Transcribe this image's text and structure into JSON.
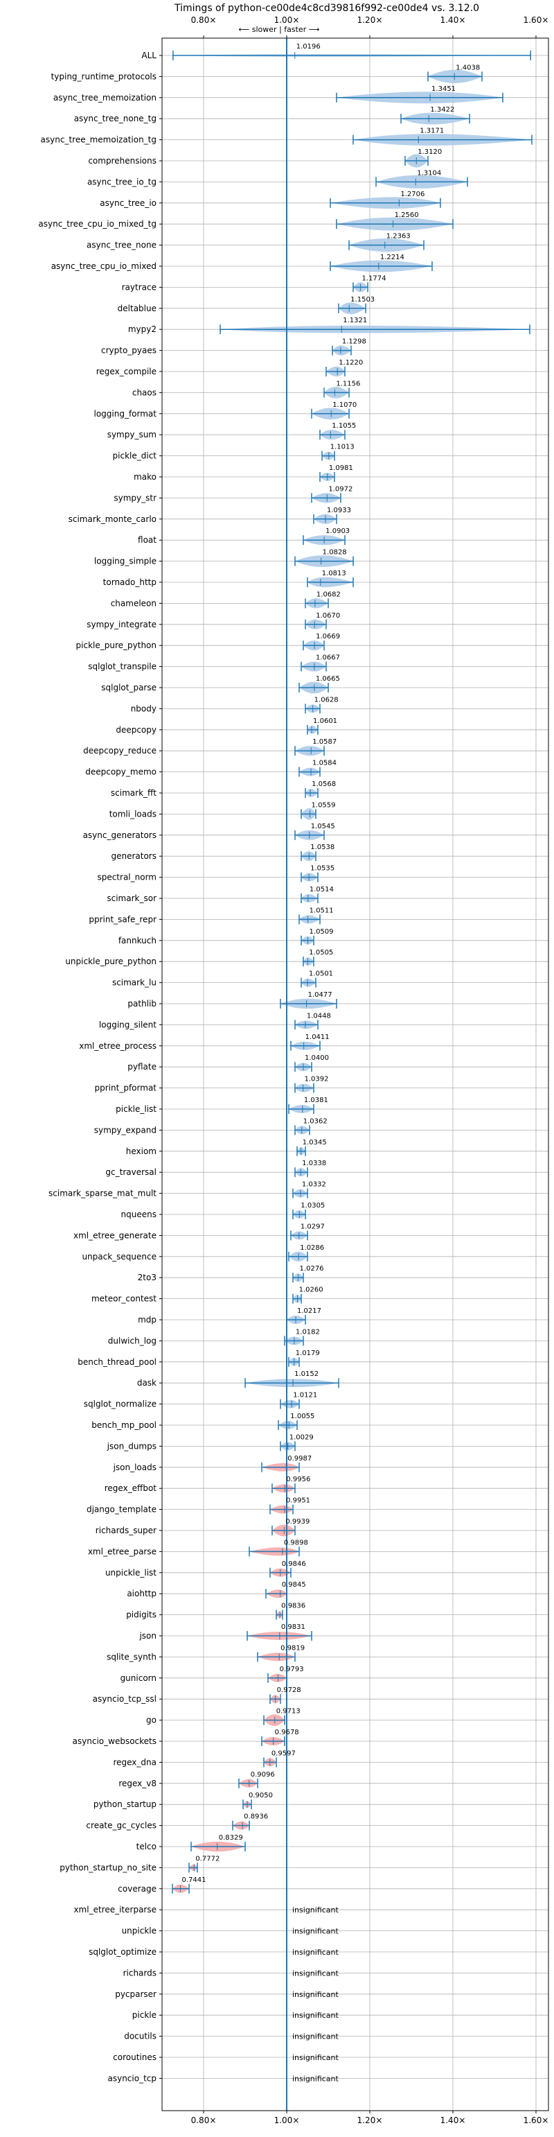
{
  "chart_data": {
    "type": "violin",
    "title": "Timings of python-ce00de4c8cd39816f992-ce00de4 vs. 3.12.0",
    "annotation_top": "⟵ slower | faster ⟶",
    "xlim": [
      0.7,
      1.63
    ],
    "xticks": [
      0.8,
      1.0,
      1.2,
      1.4,
      1.6
    ],
    "xtick_labels": [
      "0.80×",
      "1.00×",
      "1.20×",
      "1.40×",
      "1.60×"
    ],
    "reference_line": 1.0,
    "grid": true,
    "colors": {
      "faster": "#1f77b4",
      "slower": "#d62728",
      "violin_faster": "#a9c8e6",
      "violin_slower": "#f4a6a6",
      "text": "#000000",
      "grid": "#b0b0b0"
    },
    "insignificant_label": "insignificant",
    "rows": [
      {
        "name": "ALL",
        "value": 1.0196,
        "min": 0.7264,
        "max": 1.5871,
        "w": 0.15
      },
      {
        "name": "typing_runtime_protocols",
        "value": 1.4038,
        "min": 1.34,
        "max": 1.47,
        "w": 0.8
      },
      {
        "name": "async_tree_memoization",
        "value": 1.3451,
        "min": 1.12,
        "max": 1.52,
        "w": 0.7
      },
      {
        "name": "async_tree_none_tg",
        "value": 1.3422,
        "min": 1.275,
        "max": 1.44,
        "w": 0.7
      },
      {
        "name": "async_tree_memoization_tg",
        "value": 1.3171,
        "min": 1.16,
        "max": 1.59,
        "w": 0.7
      },
      {
        "name": "comprehensions",
        "value": 1.312,
        "min": 1.285,
        "max": 1.34,
        "w": 0.8
      },
      {
        "name": "async_tree_io_tg",
        "value": 1.3104,
        "min": 1.215,
        "max": 1.435,
        "w": 0.8
      },
      {
        "name": "async_tree_io",
        "value": 1.2706,
        "min": 1.105,
        "max": 1.37,
        "w": 0.7
      },
      {
        "name": "async_tree_cpu_io_mixed_tg",
        "value": 1.256,
        "min": 1.12,
        "max": 1.4,
        "w": 0.8
      },
      {
        "name": "async_tree_none",
        "value": 1.2363,
        "min": 1.15,
        "max": 1.33,
        "w": 0.8
      },
      {
        "name": "async_tree_cpu_io_mixed",
        "value": 1.2214,
        "min": 1.105,
        "max": 1.35,
        "w": 0.7
      },
      {
        "name": "raytrace",
        "value": 1.1774,
        "min": 1.16,
        "max": 1.195,
        "w": 0.6
      },
      {
        "name": "deltablue",
        "value": 1.1503,
        "min": 1.125,
        "max": 1.19,
        "w": 0.7
      },
      {
        "name": "mypy2",
        "value": 1.1321,
        "min": 0.84,
        "max": 1.585,
        "w": 0.45
      },
      {
        "name": "crypto_pyaes",
        "value": 1.1298,
        "min": 1.11,
        "max": 1.155,
        "w": 0.6
      },
      {
        "name": "regex_compile",
        "value": 1.122,
        "min": 1.095,
        "max": 1.14,
        "w": 0.6
      },
      {
        "name": "chaos",
        "value": 1.1156,
        "min": 1.09,
        "max": 1.15,
        "w": 0.7
      },
      {
        "name": "logging_format",
        "value": 1.107,
        "min": 1.06,
        "max": 1.15,
        "w": 0.7
      },
      {
        "name": "sympy_sum",
        "value": 1.1055,
        "min": 1.08,
        "max": 1.14,
        "w": 0.6
      },
      {
        "name": "pickle_dict",
        "value": 1.1013,
        "min": 1.085,
        "max": 1.115,
        "w": 0.5
      },
      {
        "name": "mako",
        "value": 1.0981,
        "min": 1.08,
        "max": 1.115,
        "w": 0.5
      },
      {
        "name": "sympy_str",
        "value": 1.0972,
        "min": 1.06,
        "max": 1.13,
        "w": 0.6
      },
      {
        "name": "scimark_monte_carlo",
        "value": 1.0933,
        "min": 1.065,
        "max": 1.12,
        "w": 0.6
      },
      {
        "name": "float",
        "value": 1.0903,
        "min": 1.04,
        "max": 1.14,
        "w": 0.6
      },
      {
        "name": "logging_simple",
        "value": 1.0828,
        "min": 1.02,
        "max": 1.16,
        "w": 0.7
      },
      {
        "name": "tornado_http",
        "value": 1.0813,
        "min": 1.05,
        "max": 1.16,
        "w": 0.6
      },
      {
        "name": "chameleon",
        "value": 1.0682,
        "min": 1.045,
        "max": 1.1,
        "w": 0.6
      },
      {
        "name": "sympy_integrate",
        "value": 1.067,
        "min": 1.045,
        "max": 1.095,
        "w": 0.6
      },
      {
        "name": "pickle_pure_python",
        "value": 1.0669,
        "min": 1.04,
        "max": 1.09,
        "w": 0.6
      },
      {
        "name": "sqlglot_transpile",
        "value": 1.0667,
        "min": 1.035,
        "max": 1.095,
        "w": 0.6
      },
      {
        "name": "sqlglot_parse",
        "value": 1.0665,
        "min": 1.03,
        "max": 1.1,
        "w": 0.7
      },
      {
        "name": "nbody",
        "value": 1.0628,
        "min": 1.045,
        "max": 1.08,
        "w": 0.5
      },
      {
        "name": "deepcopy",
        "value": 1.0601,
        "min": 1.05,
        "max": 1.075,
        "w": 0.5
      },
      {
        "name": "deepcopy_reduce",
        "value": 1.0587,
        "min": 1.02,
        "max": 1.09,
        "w": 0.6
      },
      {
        "name": "deepcopy_memo",
        "value": 1.0584,
        "min": 1.03,
        "max": 1.08,
        "w": 0.5
      },
      {
        "name": "scimark_fft",
        "value": 1.0568,
        "min": 1.045,
        "max": 1.075,
        "w": 0.5
      },
      {
        "name": "tomli_loads",
        "value": 1.0559,
        "min": 1.035,
        "max": 1.07,
        "w": 0.7
      },
      {
        "name": "async_generators",
        "value": 1.0545,
        "min": 1.02,
        "max": 1.09,
        "w": 0.6
      },
      {
        "name": "generators",
        "value": 1.0538,
        "min": 1.035,
        "max": 1.07,
        "w": 0.6
      },
      {
        "name": "spectral_norm",
        "value": 1.0535,
        "min": 1.035,
        "max": 1.075,
        "w": 0.5
      },
      {
        "name": "scimark_sor",
        "value": 1.0514,
        "min": 1.035,
        "max": 1.075,
        "w": 0.5
      },
      {
        "name": "pprint_safe_repr",
        "value": 1.0511,
        "min": 1.03,
        "max": 1.08,
        "w": 0.5
      },
      {
        "name": "fannkuch",
        "value": 1.0509,
        "min": 1.035,
        "max": 1.065,
        "w": 0.5
      },
      {
        "name": "unpickle_pure_python",
        "value": 1.0505,
        "min": 1.04,
        "max": 1.065,
        "w": 0.5
      },
      {
        "name": "scimark_lu",
        "value": 1.0501,
        "min": 1.035,
        "max": 1.07,
        "w": 0.5
      },
      {
        "name": "pathlib",
        "value": 1.0477,
        "min": 0.985,
        "max": 1.12,
        "w": 0.6
      },
      {
        "name": "logging_silent",
        "value": 1.0448,
        "min": 1.02,
        "max": 1.075,
        "w": 0.5
      },
      {
        "name": "xml_etree_process",
        "value": 1.0411,
        "min": 1.01,
        "max": 1.08,
        "w": 0.5
      },
      {
        "name": "pyflate",
        "value": 1.04,
        "min": 1.02,
        "max": 1.06,
        "w": 0.5
      },
      {
        "name": "pprint_pformat",
        "value": 1.0392,
        "min": 1.02,
        "max": 1.065,
        "w": 0.5
      },
      {
        "name": "pickle_list",
        "value": 1.0381,
        "min": 1.005,
        "max": 1.065,
        "w": 0.5
      },
      {
        "name": "sympy_expand",
        "value": 1.0362,
        "min": 1.02,
        "max": 1.055,
        "w": 0.5
      },
      {
        "name": "hexiom",
        "value": 1.0345,
        "min": 1.025,
        "max": 1.045,
        "w": 0.5
      },
      {
        "name": "gc_traversal",
        "value": 1.0338,
        "min": 1.02,
        "max": 1.05,
        "w": 0.5
      },
      {
        "name": "scimark_sparse_mat_mult",
        "value": 1.0332,
        "min": 1.015,
        "max": 1.05,
        "w": 0.5
      },
      {
        "name": "nqueens",
        "value": 1.0305,
        "min": 1.015,
        "max": 1.045,
        "w": 0.5
      },
      {
        "name": "xml_etree_generate",
        "value": 1.0297,
        "min": 1.01,
        "max": 1.05,
        "w": 0.5
      },
      {
        "name": "unpack_sequence",
        "value": 1.0286,
        "min": 1.005,
        "max": 1.05,
        "w": 0.6
      },
      {
        "name": "2to3",
        "value": 1.0276,
        "min": 1.015,
        "max": 1.04,
        "w": 0.5
      },
      {
        "name": "meteor_contest",
        "value": 1.026,
        "min": 1.015,
        "max": 1.035,
        "w": 0.5
      },
      {
        "name": "mdp",
        "value": 1.0217,
        "min": 1.0,
        "max": 1.045,
        "w": 0.5
      },
      {
        "name": "dulwich_log",
        "value": 1.0182,
        "min": 0.995,
        "max": 1.04,
        "w": 0.5
      },
      {
        "name": "bench_thread_pool",
        "value": 1.0179,
        "min": 1.005,
        "max": 1.03,
        "w": 0.5
      },
      {
        "name": "dask",
        "value": 1.0152,
        "min": 0.9,
        "max": 1.125,
        "w": 0.5
      },
      {
        "name": "sqlglot_normalize",
        "value": 1.0121,
        "min": 0.985,
        "max": 1.03,
        "w": 0.5
      },
      {
        "name": "bench_mp_pool",
        "value": 1.0055,
        "min": 0.98,
        "max": 1.025,
        "w": 0.5
      },
      {
        "name": "json_dumps",
        "value": 1.0029,
        "min": 0.985,
        "max": 1.02,
        "w": 0.5
      },
      {
        "name": "json_loads",
        "value": 0.9987,
        "min": 0.94,
        "max": 1.03,
        "w": 0.5
      },
      {
        "name": "regex_effbot",
        "value": 0.9956,
        "min": 0.965,
        "max": 1.02,
        "w": 0.5
      },
      {
        "name": "django_template",
        "value": 0.9951,
        "min": 0.96,
        "max": 1.015,
        "w": 0.5
      },
      {
        "name": "richards_super",
        "value": 0.9939,
        "min": 0.965,
        "max": 1.02,
        "w": 0.7
      },
      {
        "name": "xml_etree_parse",
        "value": 0.9898,
        "min": 0.91,
        "max": 1.03,
        "w": 0.5
      },
      {
        "name": "unpickle_list",
        "value": 0.9846,
        "min": 0.96,
        "max": 1.01,
        "w": 0.5
      },
      {
        "name": "aiohttp",
        "value": 0.9845,
        "min": 0.95,
        "max": 1.0,
        "w": 0.5
      },
      {
        "name": "pidigits",
        "value": 0.9836,
        "min": 0.975,
        "max": 0.99,
        "w": 0.4
      },
      {
        "name": "json",
        "value": 0.9831,
        "min": 0.905,
        "max": 1.06,
        "w": 0.5
      },
      {
        "name": "sqlite_synth",
        "value": 0.9819,
        "min": 0.93,
        "max": 1.02,
        "w": 0.5
      },
      {
        "name": "gunicorn",
        "value": 0.9793,
        "min": 0.955,
        "max": 1.0,
        "w": 0.5
      },
      {
        "name": "asyncio_tcp_ssl",
        "value": 0.9728,
        "min": 0.96,
        "max": 0.985,
        "w": 0.5
      },
      {
        "name": "go",
        "value": 0.9713,
        "min": 0.945,
        "max": 0.995,
        "w": 0.7
      },
      {
        "name": "asyncio_websockets",
        "value": 0.9678,
        "min": 0.94,
        "max": 0.995,
        "w": 0.5
      },
      {
        "name": "regex_dna",
        "value": 0.9597,
        "min": 0.945,
        "max": 0.975,
        "w": 0.5
      },
      {
        "name": "regex_v8",
        "value": 0.9096,
        "min": 0.885,
        "max": 0.93,
        "w": 0.5
      },
      {
        "name": "python_startup",
        "value": 0.905,
        "min": 0.895,
        "max": 0.915,
        "w": 0.4
      },
      {
        "name": "create_gc_cycles",
        "value": 0.8936,
        "min": 0.87,
        "max": 0.91,
        "w": 0.5
      },
      {
        "name": "telco",
        "value": 0.8329,
        "min": 0.77,
        "max": 0.9,
        "w": 0.6
      },
      {
        "name": "python_startup_no_site",
        "value": 0.7772,
        "min": 0.765,
        "max": 0.785,
        "w": 0.4
      },
      {
        "name": "coverage",
        "value": 0.7441,
        "min": 0.725,
        "max": 0.765,
        "w": 0.5
      },
      {
        "name": "xml_etree_iterparse",
        "insignificant": true
      },
      {
        "name": "unpickle",
        "insignificant": true
      },
      {
        "name": "sqlglot_optimize",
        "insignificant": true
      },
      {
        "name": "richards",
        "insignificant": true
      },
      {
        "name": "pycparser",
        "insignificant": true
      },
      {
        "name": "pickle",
        "insignificant": true
      },
      {
        "name": "docutils",
        "insignificant": true
      },
      {
        "name": "coroutines",
        "insignificant": true
      },
      {
        "name": "asyncio_tcp",
        "insignificant": true
      }
    ]
  }
}
